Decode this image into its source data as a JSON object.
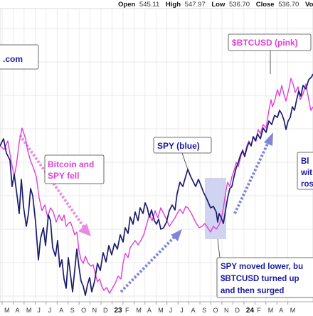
{
  "header": {
    "ohlc": [
      {
        "key": "Open",
        "value": "545.11"
      },
      {
        "key": "High",
        "value": "547.97"
      },
      {
        "key": "Low",
        "value": "536.70"
      },
      {
        "key": "Close",
        "value": "536.70"
      }
    ],
    "volume_label": "Volu"
  },
  "chart_data": {
    "type": "line",
    "title": "",
    "xlabel": "",
    "ylabel": "",
    "grid": true,
    "x_tick_labels": [
      "M",
      "A",
      "M",
      "J",
      "J",
      "A",
      "S",
      "O",
      "N",
      "D",
      "23",
      "F",
      "M",
      "A",
      "M",
      "J",
      "J",
      "A",
      "S",
      "O",
      "N",
      "D",
      "24",
      "F",
      "M",
      "A",
      "M"
    ],
    "series": [
      {
        "name": "SPY (blue)",
        "color": "#1c1c6e",
        "points": [
          [
            0,
            205
          ],
          [
            5,
            195
          ],
          [
            9,
            215
          ],
          [
            14,
            225
          ],
          [
            17,
            262
          ],
          [
            20,
            245
          ],
          [
            24,
            275
          ],
          [
            27,
            300
          ],
          [
            30,
            252
          ],
          [
            33,
            290
          ],
          [
            37,
            318
          ],
          [
            40,
            300
          ],
          [
            43,
            265
          ],
          [
            46,
            275
          ],
          [
            50,
            312
          ],
          [
            54,
            365
          ],
          [
            57,
            335
          ],
          [
            61,
            320
          ],
          [
            64,
            345
          ],
          [
            68,
            302
          ],
          [
            71,
            310
          ],
          [
            74,
            348
          ],
          [
            78,
            360
          ],
          [
            81,
            338
          ],
          [
            84,
            375
          ],
          [
            87,
            365
          ],
          [
            90,
            392
          ],
          [
            93,
            405
          ],
          [
            96,
            362
          ],
          [
            99,
            385
          ],
          [
            102,
            410
          ],
          [
            105,
            380
          ],
          [
            108,
            350
          ],
          [
            111,
            375
          ],
          [
            114,
            395
          ],
          [
            117,
            402
          ],
          [
            120,
            415
          ],
          [
            123,
            400
          ],
          [
            126,
            390
          ],
          [
            129,
            410
          ],
          [
            133,
            395
          ],
          [
            137,
            370
          ],
          [
            141,
            380
          ],
          [
            145,
            355
          ],
          [
            149,
            368
          ],
          [
            153,
            345
          ],
          [
            157,
            358
          ],
          [
            161,
            342
          ],
          [
            165,
            350
          ],
          [
            169,
            330
          ],
          [
            173,
            340
          ],
          [
            176,
            320
          ],
          [
            180,
            328
          ],
          [
            183,
            305
          ],
          [
            187,
            315
          ],
          [
            190,
            298
          ],
          [
            194,
            310
          ],
          [
            197,
            292
          ],
          [
            201,
            300
          ],
          [
            204,
            285
          ],
          [
            207,
            292
          ],
          [
            210,
            305
          ],
          [
            213,
            295
          ],
          [
            217,
            310
          ],
          [
            220,
            315
          ],
          [
            223,
            308
          ],
          [
            226,
            322
          ],
          [
            230,
            320
          ],
          [
            234,
            312
          ],
          [
            238,
            296
          ],
          [
            242,
            288
          ],
          [
            246,
            295
          ],
          [
            249,
            272
          ],
          [
            253,
            256
          ],
          [
            257,
            262
          ],
          [
            261,
            248
          ],
          [
            264,
            238
          ],
          [
            268,
            248
          ],
          [
            272,
            256
          ],
          [
            275,
            262
          ],
          [
            279,
            252
          ],
          [
            283,
            262
          ],
          [
            286,
            270
          ],
          [
            290,
            278
          ],
          [
            293,
            285
          ],
          [
            296,
            292
          ],
          [
            300,
            290
          ],
          [
            304,
            298
          ],
          [
            306,
            312
          ],
          [
            308,
            300
          ],
          [
            311,
            306
          ],
          [
            314,
            314
          ],
          [
            317,
            296
          ],
          [
            320,
            278
          ],
          [
            323,
            265
          ],
          [
            326,
            262
          ],
          [
            329,
            248
          ],
          [
            332,
            236
          ],
          [
            335,
            228
          ],
          [
            338,
            218
          ],
          [
            341,
            212
          ],
          [
            344,
            220
          ],
          [
            347,
            208
          ],
          [
            350,
            200
          ],
          [
            353,
            205
          ],
          [
            356,
            192
          ],
          [
            359,
            198
          ],
          [
            362,
            188
          ],
          [
            366,
            195
          ],
          [
            370,
            180
          ],
          [
            374,
            186
          ],
          [
            378,
            170
          ],
          [
            382,
            175
          ],
          [
            386,
            162
          ],
          [
            390,
            165
          ],
          [
            393,
            155
          ],
          [
            396,
            160
          ],
          [
            399,
            168
          ],
          [
            402,
            182
          ],
          [
            405,
            170
          ],
          [
            408,
            165
          ],
          [
            411,
            150
          ],
          [
            414,
            155
          ],
          [
            417,
            140
          ],
          [
            420,
            128
          ],
          [
            423,
            135
          ],
          [
            426,
            120
          ],
          [
            430,
            125
          ],
          [
            434,
            112
          ],
          [
            438,
            108
          ],
          [
            440,
            104
          ]
        ]
      },
      {
        "name": "$BTCUSD (pink)",
        "color": "#e040d8",
        "points": [
          [
            0,
            205
          ],
          [
            6,
            210
          ],
          [
            11,
            198
          ],
          [
            16,
            228
          ],
          [
            20,
            248
          ],
          [
            23,
            232
          ],
          [
            27,
            200
          ],
          [
            31,
            180
          ],
          [
            36,
            195
          ],
          [
            39,
            212
          ],
          [
            43,
            226
          ],
          [
            47,
            236
          ],
          [
            51,
            248
          ],
          [
            55,
            278
          ],
          [
            59,
            296
          ],
          [
            63,
            288
          ],
          [
            67,
            305
          ],
          [
            71,
            292
          ],
          [
            75,
            298
          ],
          [
            79,
            312
          ],
          [
            83,
            302
          ],
          [
            87,
            310
          ],
          [
            90,
            302
          ],
          [
            93,
            318
          ],
          [
            96,
            314
          ],
          [
            99,
            312
          ],
          [
            102,
            320
          ],
          [
            105,
            330
          ],
          [
            108,
            326
          ],
          [
            111,
            352
          ],
          [
            114,
            365
          ],
          [
            117,
            370
          ],
          [
            120,
            360
          ],
          [
            124,
            370
          ],
          [
            128,
            374
          ],
          [
            131,
            372
          ],
          [
            134,
            385
          ],
          [
            137,
            396
          ],
          [
            140,
            392
          ],
          [
            143,
            402
          ],
          [
            146,
            408
          ],
          [
            150,
            404
          ],
          [
            154,
            412
          ],
          [
            158,
            405
          ],
          [
            162,
            398
          ],
          [
            166,
            388
          ],
          [
            170,
            392
          ],
          [
            173,
            370
          ],
          [
            176,
            356
          ],
          [
            180,
            362
          ],
          [
            183,
            348
          ],
          [
            187,
            342
          ],
          [
            190,
            338
          ],
          [
            194,
            344
          ],
          [
            198,
            338
          ],
          [
            202,
            330
          ],
          [
            206,
            316
          ],
          [
            210,
            302
          ],
          [
            214,
            310
          ],
          [
            218,
            296
          ],
          [
            222,
            306
          ],
          [
            226,
            292
          ],
          [
            230,
            300
          ],
          [
            234,
            308
          ],
          [
            238,
            318
          ],
          [
            242,
            312
          ],
          [
            246,
            306
          ],
          [
            249,
            300
          ],
          [
            253,
            294
          ],
          [
            257,
            300
          ],
          [
            261,
            290
          ],
          [
            264,
            292
          ],
          [
            268,
            298
          ],
          [
            272,
            306
          ],
          [
            276,
            314
          ],
          [
            280,
            320
          ],
          [
            284,
            318
          ],
          [
            288,
            314
          ],
          [
            292,
            320
          ],
          [
            296,
            326
          ],
          [
            300,
            318
          ],
          [
            304,
            322
          ],
          [
            308,
            316
          ],
          [
            311,
            308
          ],
          [
            314,
            292
          ],
          [
            317,
            272
          ],
          [
            320,
            256
          ],
          [
            323,
            262
          ],
          [
            326,
            248
          ],
          [
            329,
            240
          ],
          [
            332,
            228
          ],
          [
            335,
            234
          ],
          [
            338,
            222
          ],
          [
            341,
            210
          ],
          [
            344,
            218
          ],
          [
            347,
            205
          ],
          [
            350,
            198
          ],
          [
            353,
            205
          ],
          [
            356,
            192
          ],
          [
            360,
            198
          ],
          [
            363,
            182
          ],
          [
            366,
            188
          ],
          [
            370,
            175
          ],
          [
            374,
            180
          ],
          [
            378,
            155
          ],
          [
            381,
            140
          ],
          [
            383,
            150
          ],
          [
            386,
            142
          ],
          [
            390,
            126
          ],
          [
            393,
            135
          ],
          [
            396,
            120
          ],
          [
            399,
            132
          ],
          [
            402,
            142
          ],
          [
            406,
            125
          ],
          [
            409,
            110
          ],
          [
            412,
            118
          ],
          [
            415,
            130
          ],
          [
            419,
            122
          ],
          [
            422,
            140
          ],
          [
            426,
            132
          ],
          [
            430,
            118
          ],
          [
            434,
            140
          ],
          [
            437,
            155
          ],
          [
            440,
            150
          ]
        ]
      }
    ],
    "annotations": [
      {
        "text": ".com",
        "color": "#1a1aa6"
      },
      {
        "text": "$BTCUSD (pink)",
        "color": "#e040d8"
      },
      {
        "text": "Bitcoin and",
        "color": "#e040d8"
      },
      {
        "text": "SPY fell",
        "color": "#e040d8"
      },
      {
        "text": "SPY (blue)",
        "color": "#1a1aa6"
      },
      {
        "text": "Bl",
        "color": "#1a1aa6"
      },
      {
        "text": "wit",
        "color": "#1a1aa6"
      },
      {
        "text": "ros",
        "color": "#1a1aa6"
      },
      {
        "text": "SPY moved lower, bu",
        "color": "#1a1aa6"
      },
      {
        "text": "$BTCUSD turned up",
        "color": "#1a1aa6"
      },
      {
        "text": "and then surged",
        "color": "#1a1aa6"
      }
    ],
    "colors": {
      "spy": "#1c1c6e",
      "btc": "#e040d8",
      "arrow_pink": "#e88be0",
      "arrow_blue": "#7f86d8",
      "highlight": "#c9cdee",
      "grid": "#e3e3e3",
      "annotation_blue": "#1a1aa6"
    }
  }
}
